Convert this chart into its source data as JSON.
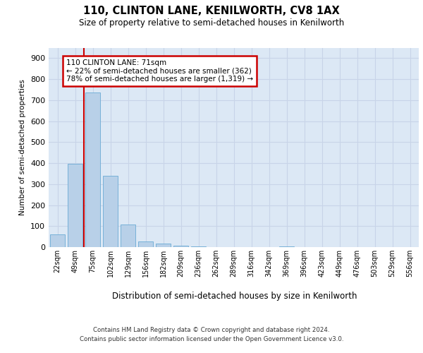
{
  "title": "110, CLINTON LANE, KENILWORTH, CV8 1AX",
  "subtitle": "Size of property relative to semi-detached houses in Kenilworth",
  "xlabel": "Distribution of semi-detached houses by size in Kenilworth",
  "ylabel": "Number of semi-detached properties",
  "bar_labels": [
    "22sqm",
    "49sqm",
    "75sqm",
    "102sqm",
    "129sqm",
    "156sqm",
    "182sqm",
    "209sqm",
    "236sqm",
    "262sqm",
    "289sqm",
    "316sqm",
    "342sqm",
    "369sqm",
    "396sqm",
    "423sqm",
    "449sqm",
    "476sqm",
    "503sqm",
    "529sqm",
    "556sqm"
  ],
  "bar_values": [
    62,
    396,
    735,
    338,
    106,
    27,
    16,
    8,
    5,
    0,
    0,
    0,
    0,
    5,
    0,
    0,
    0,
    0,
    0,
    0,
    0
  ],
  "bar_color": "#b8d0e8",
  "bar_edge_color": "#6aaad4",
  "property_line_x": 1.5,
  "property_size": "71sqm",
  "pct_smaller": 22,
  "n_smaller": 362,
  "pct_larger": 78,
  "n_larger": 1319,
  "annotation_box_color": "#cc0000",
  "property_line_color": "#cc0000",
  "ylim": [
    0,
    950
  ],
  "yticks": [
    0,
    100,
    200,
    300,
    400,
    500,
    600,
    700,
    800,
    900
  ],
  "grid_color": "#c8d4e8",
  "background_color": "#dce8f5",
  "footer_line1": "Contains HM Land Registry data © Crown copyright and database right 2024.",
  "footer_line2": "Contains public sector information licensed under the Open Government Licence v3.0."
}
